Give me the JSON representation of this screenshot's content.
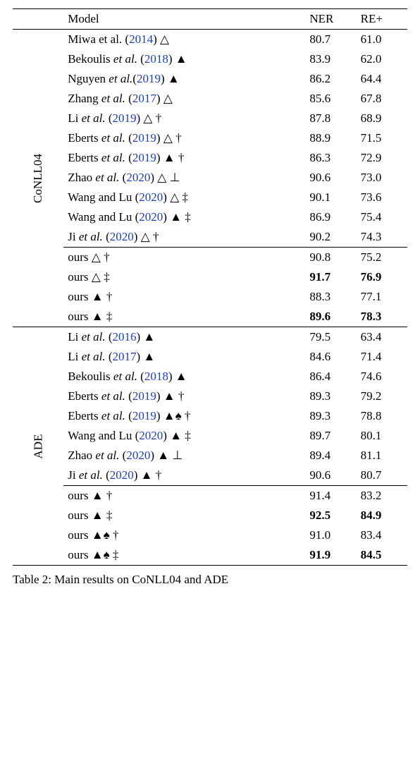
{
  "header": {
    "model": "Model",
    "ner": "NER",
    "re": "RE+"
  },
  "groups": [
    {
      "label": "CoNLL04",
      "rows": [
        {
          "pre": "Miwa et al. (",
          "yr": "2014",
          "post": ")",
          "syms": " △",
          "ner": "80.7",
          "re": "61.0"
        },
        {
          "pre": "Bekoulis ",
          "etal": "et al.",
          "post2": " (",
          "yr": "2018",
          "post3": ")",
          "syms": " ▲",
          "ner": "83.9",
          "re": "62.0"
        },
        {
          "pre": "Nguyen ",
          "etal": "et al.",
          "post2": "(",
          "yr": "2019",
          "post3": ")",
          "syms": " ▲",
          "ner": "86.2",
          "re": "64.4"
        },
        {
          "pre": "Zhang ",
          "etal": "et al.",
          "post2": " (",
          "yr": "2017",
          "post3": ")",
          "syms": " △",
          "ner": "85.6",
          "re": "67.8"
        },
        {
          "pre": "Li ",
          "etal": "et al.",
          "post2": " (",
          "yr": "2019",
          "post3": ")",
          "syms": " △ †",
          "ner": "87.8",
          "re": "68.9"
        },
        {
          "pre": "Eberts ",
          "etal": "et al.",
          "post2": " (",
          "yr": "2019",
          "post3": ")",
          "syms": " △ †",
          "ner": "88.9",
          "re": "71.5"
        },
        {
          "pre": "Eberts ",
          "etal": "et al.",
          "post2": " (",
          "yr": "2019",
          "post3": ")",
          "syms": " ▲ †",
          "ner": "86.3",
          "re": "72.9"
        },
        {
          "pre": "Zhao ",
          "etal": "et al.",
          "post2": " (",
          "yr": "2020",
          "post3": ")",
          "syms": " △ ⊥",
          "ner": "90.6",
          "re": "73.0"
        },
        {
          "pre": "Wang and Lu (",
          "yr": "2020",
          "post": ")",
          "syms": " △ ‡",
          "ner": "90.1",
          "re": "73.6"
        },
        {
          "pre": "Wang and Lu (",
          "yr": "2020",
          "post": ")",
          "syms": " ▲ ‡",
          "ner": "86.9",
          "re": "75.4"
        },
        {
          "pre": "Ji ",
          "etal": "et al.",
          "post2": " (",
          "yr": "2020",
          "post3": ")",
          "syms": " △ †",
          "ner": "90.2",
          "re": "74.3"
        }
      ],
      "ours": [
        {
          "label": "ours",
          "syms": " △ †",
          "ner": "90.8",
          "re": "75.2"
        },
        {
          "label": "ours",
          "syms": " △ ‡",
          "ner": "91.7",
          "re": "76.9",
          "bold": true
        },
        {
          "label": "ours",
          "syms": " ▲ †",
          "ner": "88.3",
          "re": "77.1"
        },
        {
          "label": "ours",
          "syms": " ▲ ‡",
          "ner": "89.6",
          "re": "78.3",
          "bold": true
        }
      ]
    },
    {
      "label": "ADE",
      "rows": [
        {
          "pre": "Li ",
          "etal": "et al.",
          "post2": " (",
          "yr": "2016",
          "post3": ")",
          "syms": " ▲",
          "ner": "79.5",
          "re": "63.4"
        },
        {
          "pre": "Li ",
          "etal": "et al.",
          "post2": " (",
          "yr": "2017",
          "post3": ")",
          "syms": " ▲",
          "ner": "84.6",
          "re": "71.4"
        },
        {
          "pre": "Bekoulis ",
          "etal": "et al.",
          "post2": " (",
          "yr": "2018",
          "post3": ")",
          "syms": " ▲",
          "ner": "86.4",
          "re": "74.6"
        },
        {
          "pre": "Eberts ",
          "etal": "et al.",
          "post2": " (",
          "yr": "2019",
          "post3": ")",
          "syms": " ▲ †",
          "ner": "89.3",
          "re": "79.2"
        },
        {
          "pre": "Eberts ",
          "etal": "et al.",
          "post2": " (",
          "yr": "2019",
          "post3": ")",
          "syms": " ▲♠ †",
          "ner": "89.3",
          "re": "78.8"
        },
        {
          "pre": "Wang and Lu (",
          "yr": "2020",
          "post": ")",
          "syms": " ▲ ‡",
          "ner": "89.7",
          "re": "80.1"
        },
        {
          "pre": "Zhao ",
          "etal": "et al.",
          "post2": " (",
          "yr": "2020",
          "post3": ")",
          "syms": " ▲ ⊥",
          "ner": "89.4",
          "re": "81.1"
        },
        {
          "pre": "Ji ",
          "etal": "et al.",
          "post2": " (",
          "yr": "2020",
          "post3": ")",
          "syms": " ▲ †",
          "ner": "90.6",
          "re": "80.7"
        }
      ],
      "ours": [
        {
          "label": "ours",
          "syms": " ▲ †",
          "ner": "91.4",
          "re": "83.2"
        },
        {
          "label": "ours",
          "syms": " ▲ ‡",
          "ner": "92.5",
          "re": "84.9",
          "bold": true
        },
        {
          "label": "ours",
          "syms": " ▲♠ †",
          "ner": "91.0",
          "re": "83.4"
        },
        {
          "label": "ours",
          "syms": " ▲♠ ‡",
          "ner": "91.9",
          "re": "84.5",
          "bold": true
        }
      ]
    }
  ],
  "caption": {
    "prefix": "Table 2:",
    "text": "  Main results on CoNLL04 and ADE"
  },
  "style": {
    "cite_color": "#1a3fcf",
    "text_color": "#000000",
    "background": "#ffffff",
    "font_family": "Times New Roman",
    "base_fontsize_pt": 13
  }
}
